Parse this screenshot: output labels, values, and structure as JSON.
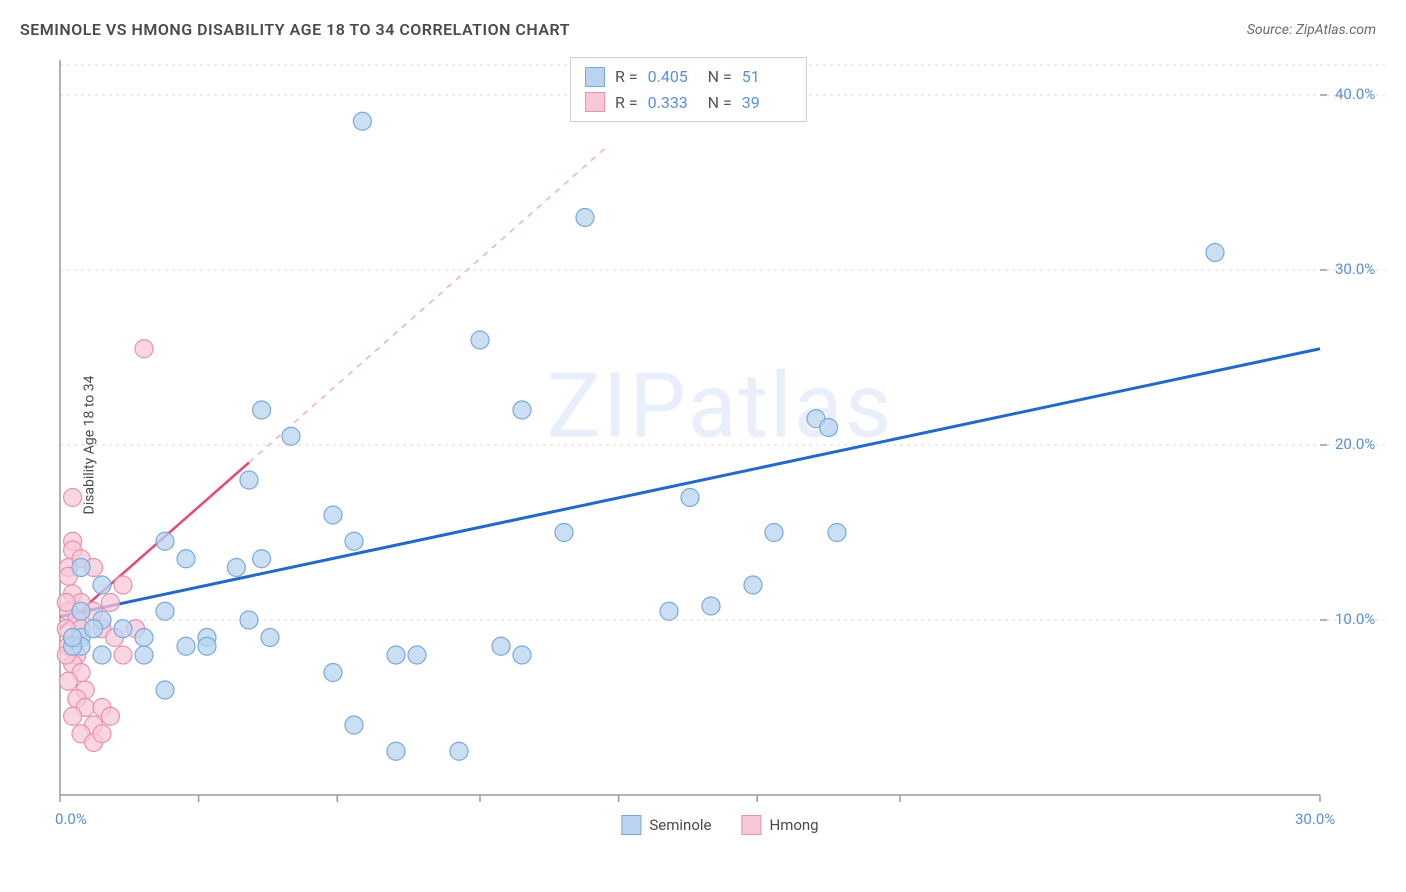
{
  "header": {
    "title": "SEMINOLE VS HMONG DISABILITY AGE 18 TO 34 CORRELATION CHART",
    "source_prefix": "Source: ",
    "source": "ZipAtlas.com"
  },
  "y_axis_label": "Disability Age 18 to 34",
  "watermark": "ZIPatlas",
  "chart": {
    "type": "scatter",
    "background_color": "#ffffff",
    "grid_color": "#d8d8d8",
    "axis_color": "#9a9a9a",
    "xlim": [
      0,
      30
    ],
    "ylim": [
      0,
      42
    ],
    "x_ticks": [
      0,
      3.3,
      6.6,
      10,
      13.3,
      16.6,
      20,
      30
    ],
    "x_tick_labels": {
      "0": "0.0%",
      "30": "30.0%"
    },
    "y_ticks": [
      10,
      20,
      30,
      40
    ],
    "y_tick_labels": {
      "10": "10.0%",
      "20": "20.0%",
      "30": "30.0%",
      "40": "40.0%"
    },
    "series": [
      {
        "name": "Seminole",
        "color_fill": "#b8d4f0",
        "color_stroke": "#7aa8d8",
        "marker_radius": 9,
        "R": "0.405",
        "N": "51",
        "trend_color": "#2468c8",
        "trend_width": 3,
        "trend_dash": "none",
        "trend_start": [
          0,
          10.2
        ],
        "trend_end": [
          30,
          25.5
        ],
        "points": [
          [
            7.2,
            38.5
          ],
          [
            12.5,
            33.0
          ],
          [
            27.5,
            31.0
          ],
          [
            10.0,
            26.0
          ],
          [
            4.8,
            22.0
          ],
          [
            5.5,
            20.5
          ],
          [
            11.0,
            22.0
          ],
          [
            18.0,
            21.5
          ],
          [
            18.3,
            21.0
          ],
          [
            4.5,
            18.0
          ],
          [
            6.5,
            16.0
          ],
          [
            7.0,
            14.5
          ],
          [
            12.0,
            15.0
          ],
          [
            17.0,
            15.0
          ],
          [
            18.5,
            15.0
          ],
          [
            2.5,
            14.5
          ],
          [
            3.0,
            13.5
          ],
          [
            4.2,
            13.0
          ],
          [
            4.8,
            13.5
          ],
          [
            15.0,
            17.0
          ],
          [
            14.5,
            10.5
          ],
          [
            15.5,
            10.8
          ],
          [
            16.5,
            12.0
          ],
          [
            1.0,
            12.0
          ],
          [
            1.0,
            10.0
          ],
          [
            1.5,
            9.5
          ],
          [
            2.0,
            9.0
          ],
          [
            2.5,
            10.5
          ],
          [
            3.5,
            9.0
          ],
          [
            4.5,
            10.0
          ],
          [
            2.0,
            8.0
          ],
          [
            1.0,
            8.0
          ],
          [
            3.0,
            8.5
          ],
          [
            3.5,
            8.5
          ],
          [
            5.0,
            9.0
          ],
          [
            6.5,
            7.0
          ],
          [
            8.0,
            8.0
          ],
          [
            8.5,
            8.0
          ],
          [
            10.5,
            8.5
          ],
          [
            0.5,
            9.0
          ],
          [
            0.5,
            8.5
          ],
          [
            0.8,
            9.5
          ],
          [
            7.0,
            4.0
          ],
          [
            8.0,
            2.5
          ],
          [
            9.5,
            2.5
          ],
          [
            11.0,
            8.0
          ],
          [
            2.5,
            6.0
          ],
          [
            0.5,
            13.0
          ],
          [
            0.3,
            8.5
          ],
          [
            0.3,
            9.0
          ],
          [
            0.5,
            10.5
          ]
        ]
      },
      {
        "name": "Hmong",
        "color_fill": "#f8c8d8",
        "color_stroke": "#e890b0",
        "marker_radius": 9,
        "R": "0.333",
        "N": "39",
        "trend_color": "#e84878",
        "trend_width": 2.5,
        "trend_dash": "none",
        "trend_start": [
          0,
          9.5
        ],
        "trend_end": [
          4.5,
          19.0
        ],
        "trend_dash_ext": "6,6",
        "trend_ext_color": "#f0b0c0",
        "trend_ext_end": [
          13.0,
          37.0
        ],
        "points": [
          [
            2.0,
            25.5
          ],
          [
            0.3,
            17.0
          ],
          [
            0.3,
            14.5
          ],
          [
            0.3,
            14.0
          ],
          [
            0.2,
            13.0
          ],
          [
            0.5,
            13.5
          ],
          [
            0.2,
            12.5
          ],
          [
            0.8,
            13.0
          ],
          [
            0.3,
            11.5
          ],
          [
            0.5,
            11.0
          ],
          [
            0.2,
            10.5
          ],
          [
            0.4,
            10.0
          ],
          [
            0.3,
            9.0
          ],
          [
            0.5,
            9.5
          ],
          [
            0.2,
            8.5
          ],
          [
            0.4,
            8.0
          ],
          [
            0.3,
            7.5
          ],
          [
            0.5,
            7.0
          ],
          [
            0.2,
            6.5
          ],
          [
            0.6,
            6.0
          ],
          [
            0.8,
            10.5
          ],
          [
            1.2,
            11.0
          ],
          [
            1.0,
            9.5
          ],
          [
            1.3,
            9.0
          ],
          [
            0.4,
            5.5
          ],
          [
            0.6,
            5.0
          ],
          [
            0.3,
            4.5
          ],
          [
            0.8,
            4.0
          ],
          [
            1.0,
            5.0
          ],
          [
            1.2,
            4.5
          ],
          [
            0.5,
            3.5
          ],
          [
            0.8,
            3.0
          ],
          [
            1.0,
            3.5
          ],
          [
            1.5,
            8.0
          ],
          [
            1.8,
            9.5
          ],
          [
            1.5,
            12.0
          ],
          [
            0.15,
            11.0
          ],
          [
            0.15,
            9.5
          ],
          [
            0.15,
            8.0
          ]
        ]
      }
    ]
  },
  "stats_box": {
    "r_label": "R =",
    "n_label": "N ="
  },
  "legend": {
    "series1": "Seminole",
    "series2": "Hmong"
  }
}
